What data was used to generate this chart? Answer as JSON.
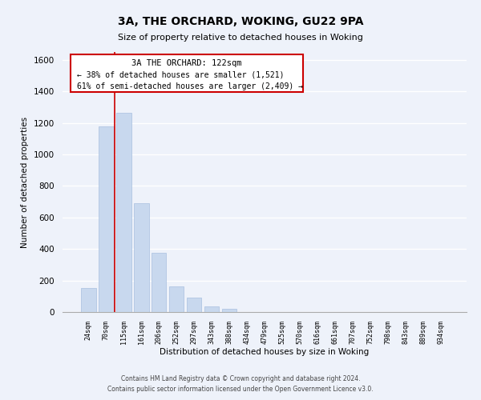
{
  "title": "3A, THE ORCHARD, WOKING, GU22 9PA",
  "subtitle": "Size of property relative to detached houses in Woking",
  "xlabel": "Distribution of detached houses by size in Woking",
  "ylabel": "Number of detached properties",
  "bar_labels": [
    "24sqm",
    "70sqm",
    "115sqm",
    "161sqm",
    "206sqm",
    "252sqm",
    "297sqm",
    "343sqm",
    "388sqm",
    "434sqm",
    "479sqm",
    "525sqm",
    "570sqm",
    "616sqm",
    "661sqm",
    "707sqm",
    "752sqm",
    "798sqm",
    "843sqm",
    "889sqm",
    "934sqm"
  ],
  "bar_values": [
    150,
    1180,
    1265,
    690,
    375,
    160,
    90,
    35,
    20,
    0,
    0,
    0,
    0,
    0,
    0,
    0,
    0,
    0,
    0,
    0,
    0
  ],
  "bar_color": "#c8d8ee",
  "bar_edge_color": "#a8c0e0",
  "highlight_line_color": "#cc0000",
  "ylim": [
    0,
    1650
  ],
  "yticks": [
    0,
    200,
    400,
    600,
    800,
    1000,
    1200,
    1400,
    1600
  ],
  "annotation_title": "3A THE ORCHARD: 122sqm",
  "annotation_line1": "← 38% of detached houses are smaller (1,521)",
  "annotation_line2": "61% of semi-detached houses are larger (2,409) →",
  "footnote1": "Contains HM Land Registry data © Crown copyright and database right 2024.",
  "footnote2": "Contains public sector information licensed under the Open Government Licence v3.0.",
  "bg_color": "#eef2fa",
  "grid_color": "#ffffff"
}
